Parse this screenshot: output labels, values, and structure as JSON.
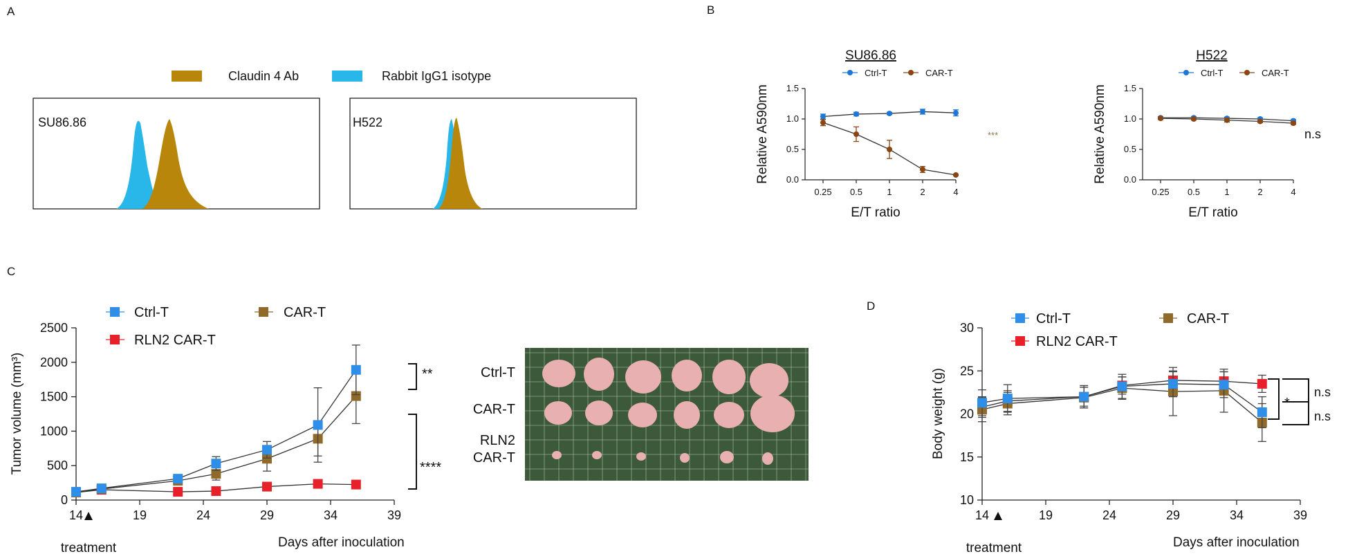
{
  "panels": {
    "a": "A",
    "b": "B",
    "c": "C",
    "d": "D"
  },
  "panel_a": {
    "legend": {
      "claudin": "Claudin 4 Ab",
      "isotype": "Rabbit IgG1 isotype"
    },
    "colors": {
      "claudin": "#b8860b",
      "isotype": "#29b6e8"
    },
    "box1_label": "SU86.86",
    "box2_label": "H522"
  },
  "panel_b": {
    "ylabel": "Relative A590nm",
    "xlabel": "E/T ratio",
    "left_title": "SU86.86",
    "right_title": "H522",
    "legend_ctrl": "Ctrl-T",
    "legend_car": "CAR-T",
    "sig_left": "***",
    "sig_right": "n.s",
    "yticks": [
      "0.0",
      "0.5",
      "1.0",
      "1.5"
    ],
    "xticks": [
      "0.25",
      "0.5",
      "1",
      "2",
      "4"
    ]
  },
  "panel_c": {
    "ylabel": "Tumor volume (mm³)",
    "xlabel": "Days after inoculation",
    "treatment": "treatment",
    "legend_ctrl": "Ctrl-T",
    "legend_car": "CAR-T",
    "legend_rln2": "RLN2 CAR-T",
    "sig_top": "**",
    "sig_bottom": "****",
    "yticks": [
      "0",
      "500",
      "1000",
      "1500",
      "2000",
      "2500"
    ],
    "xticks": [
      "14",
      "19",
      "24",
      "29",
      "34",
      "39"
    ],
    "photo_rows": [
      "Ctrl-T",
      "CAR-T",
      "RLN2",
      "CAR-T"
    ]
  },
  "panel_d": {
    "ylabel": "Body weight (g)",
    "xlabel": "Days after inoculation",
    "treatment": "treatment",
    "legend_ctrl": "Ctrl-T",
    "legend_car": "CAR-T",
    "legend_rln2": "RLN2 CAR-T",
    "sig_star": "*",
    "sig_ns1": "n.s",
    "sig_ns2": "n.s",
    "yticks": [
      "10",
      "15",
      "20",
      "25",
      "30"
    ],
    "xticks": [
      "14",
      "19",
      "24",
      "29",
      "34",
      "39"
    ]
  },
  "colors": {
    "blue_circle": "#1f77d4",
    "brown_circle": "#8b4513",
    "blue_square": "#2f8fe8",
    "brown_square": "#8f6a2a",
    "red_square": "#e8202a",
    "photo_bg": "#3c5a3a",
    "tumor": "#e8b0b0"
  },
  "chart_data": [
    {
      "id": "B-left",
      "type": "line",
      "title": "SU86.86",
      "xlabel": "E/T ratio",
      "ylabel": "Relative A590nm",
      "categories": [
        "0.25",
        "0.5",
        "1",
        "2",
        "4"
      ],
      "ylim": [
        0,
        1.5
      ],
      "series": [
        {
          "name": "Ctrl-T",
          "values": [
            1.04,
            1.08,
            1.09,
            1.12,
            1.1
          ],
          "errors": [
            0.04,
            0.03,
            0.02,
            0.04,
            0.05
          ]
        },
        {
          "name": "CAR-T",
          "values": [
            0.94,
            0.75,
            0.5,
            0.17,
            0.08
          ],
          "errors": [
            0.05,
            0.12,
            0.15,
            0.05,
            0.01
          ]
        }
      ],
      "annotation": "***"
    },
    {
      "id": "B-right",
      "type": "line",
      "title": "H522",
      "xlabel": "E/T ratio",
      "ylabel": "Relative A590nm",
      "categories": [
        "0.25",
        "0.5",
        "1",
        "2",
        "4"
      ],
      "ylim": [
        0,
        1.5
      ],
      "series": [
        {
          "name": "Ctrl-T",
          "values": [
            1.02,
            1.02,
            1.01,
            1.0,
            0.97
          ],
          "errors": [
            0.02,
            0.02,
            0.02,
            0.02,
            0.02
          ]
        },
        {
          "name": "CAR-T",
          "values": [
            1.01,
            1.0,
            0.98,
            0.96,
            0.93
          ],
          "errors": [
            0.02,
            0.02,
            0.03,
            0.02,
            0.02
          ]
        }
      ],
      "annotation": "n.s"
    },
    {
      "id": "C",
      "type": "line",
      "xlabel": "Days after inoculation",
      "ylabel": "Tumor volume (mm³)",
      "xlim": [
        14,
        39
      ],
      "ylim": [
        0,
        2500
      ],
      "series": [
        {
          "name": "Ctrl-T",
          "x": [
            14,
            16,
            22,
            25,
            29,
            33,
            36
          ],
          "values": [
            120,
            170,
            310,
            530,
            730,
            1090,
            1890
          ],
          "errors": [
            30,
            50,
            60,
            100,
            120,
            540,
            360
          ]
        },
        {
          "name": "CAR-T",
          "x": [
            14,
            16,
            22,
            25,
            29,
            33,
            36
          ],
          "values": [
            110,
            160,
            280,
            380,
            600,
            890,
            1510
          ],
          "errors": [
            30,
            40,
            60,
            90,
            180,
            250,
            400
          ]
        },
        {
          "name": "RLN2 CAR-T",
          "x": [
            14,
            16,
            22,
            25,
            29,
            33,
            36
          ],
          "values": [
            110,
            150,
            120,
            130,
            195,
            235,
            225
          ],
          "errors": [
            20,
            30,
            30,
            30,
            30,
            40,
            40
          ]
        }
      ],
      "annotations": [
        "**",
        "****"
      ]
    },
    {
      "id": "D",
      "type": "line",
      "xlabel": "Days after inoculation",
      "ylabel": "Body weight (g)",
      "xlim": [
        14,
        39
      ],
      "ylim": [
        10,
        30
      ],
      "series": [
        {
          "name": "Ctrl-T",
          "x": [
            14,
            16,
            22,
            25,
            29,
            33,
            36
          ],
          "values": [
            21.3,
            21.8,
            22.0,
            23.2,
            23.5,
            23.4,
            20.2
          ],
          "errors": [
            1.5,
            1.6,
            1.3,
            1.4,
            1.5,
            1.5,
            1.8
          ]
        },
        {
          "name": "CAR-T",
          "x": [
            14,
            16,
            22,
            25,
            29,
            33,
            36
          ],
          "values": [
            20.5,
            21.2,
            21.9,
            23.0,
            22.6,
            22.7,
            19.0
          ],
          "errors": [
            1.4,
            1.3,
            1.2,
            1.3,
            2.8,
            2.5,
            2.2
          ]
        },
        {
          "name": "RLN2 CAR-T",
          "x": [
            14,
            16,
            22,
            25,
            29,
            33,
            36
          ],
          "values": [
            20.8,
            21.5,
            22.0,
            23.3,
            23.9,
            23.8,
            23.5
          ],
          "errors": [
            1.2,
            1.2,
            1.1,
            1.0,
            1.0,
            1.1,
            1.0
          ]
        }
      ],
      "annotations": [
        "*",
        "n.s",
        "n.s"
      ]
    }
  ]
}
